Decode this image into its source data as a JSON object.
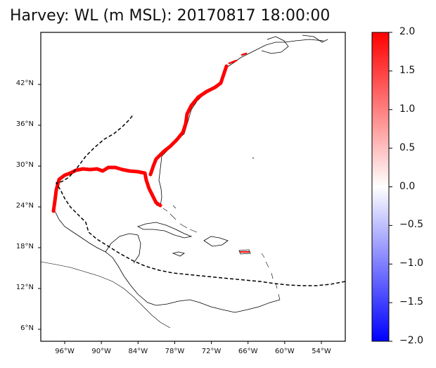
{
  "title": "Harvey: WL (m MSL): 20170817 18:00:00",
  "lat_ticks": [
    {
      "label": "42°N",
      "lat": 42
    },
    {
      "label": "36°N",
      "lat": 36
    },
    {
      "label": "30°N",
      "lat": 30
    },
    {
      "label": "24°N",
      "lat": 24
    },
    {
      "label": "18°N",
      "lat": 18
    },
    {
      "label": "12°N",
      "lat": 12
    },
    {
      "label": "6°N",
      "lat": 6
    }
  ],
  "lon_ticks": [
    {
      "label": "96°W",
      "lon": -96
    },
    {
      "label": "90°W",
      "lon": -90
    },
    {
      "label": "84°W",
      "lon": -84
    },
    {
      "label": "78°W",
      "lon": -78
    },
    {
      "label": "72°W",
      "lon": -72
    },
    {
      "label": "66°W",
      "lon": -66
    },
    {
      "label": "60°W",
      "lon": -60
    },
    {
      "label": "54°W",
      "lon": -54
    }
  ],
  "colorbar": {
    "min": -2.0,
    "max": 2.0,
    "colors": [
      "#0000ff",
      "#ffffff",
      "#ff0000"
    ],
    "ticks": [
      "2.0",
      "1.5",
      "1.0",
      "0.5",
      "0.0",
      "−0.5",
      "−1.0",
      "−1.5",
      "−2.0"
    ]
  },
  "colors": {
    "high_water": "#ff0000",
    "coastline": "#000000",
    "track": "#000000"
  }
}
